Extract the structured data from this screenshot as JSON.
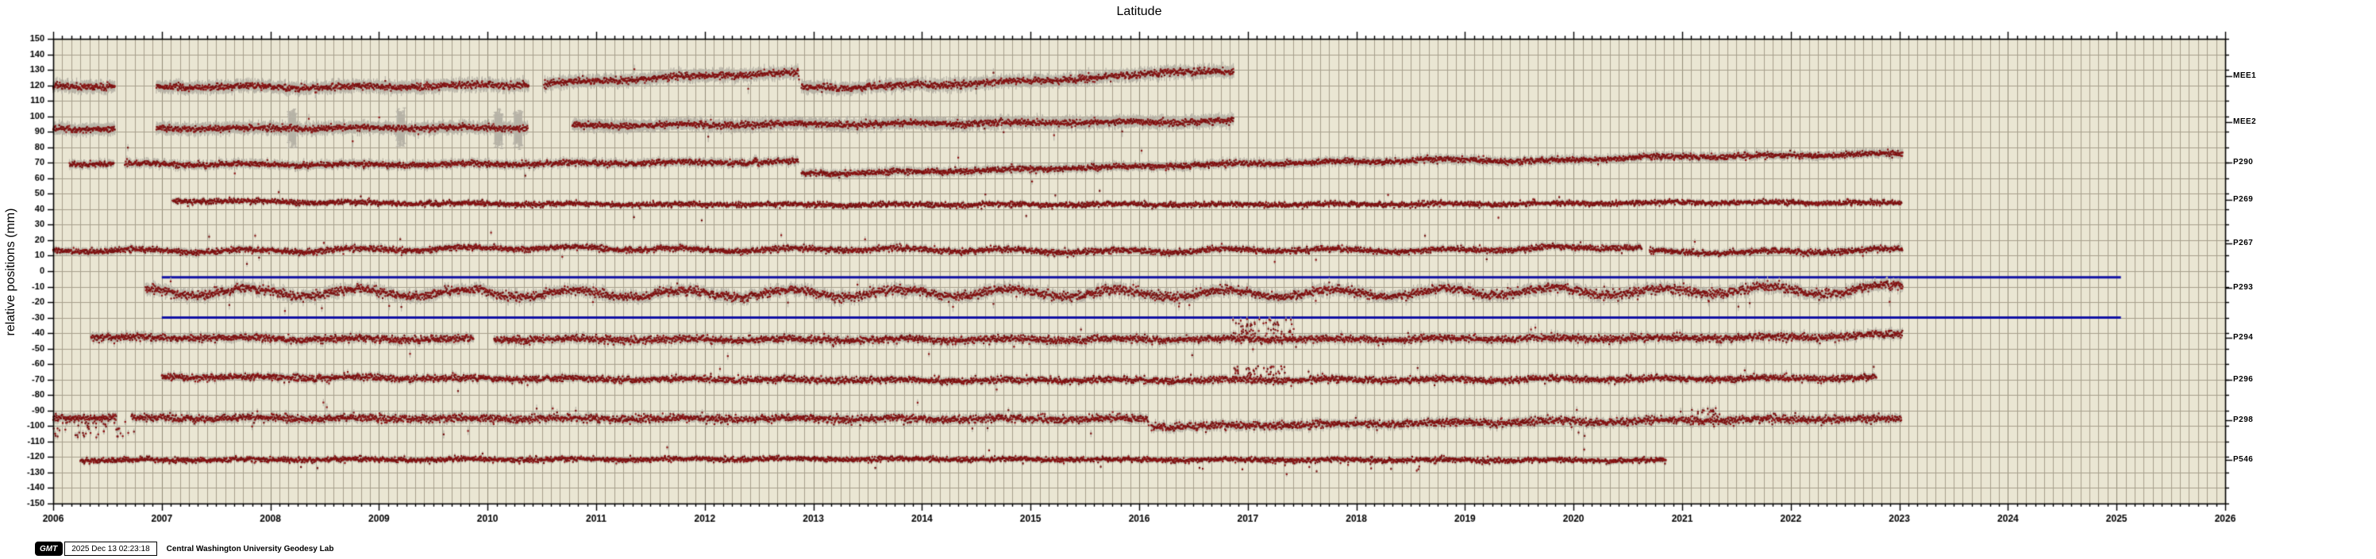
{
  "page": {
    "title": "Latitude"
  },
  "stamp": {
    "logo": "GMT",
    "timestamp": "2025 Dec 13 02:23:18",
    "credit": "Central Washington University Geodesy Lab"
  },
  "colors": {
    "page_bg": "#ffffff",
    "plot_bg": "#eae6d3",
    "grid_minor": "#a69f8c",
    "grid_year": "#938c78",
    "frame": "#000000",
    "point": "#8b1414",
    "point_dark": "#751010",
    "error_bar": "#b7b3a7",
    "reference_line": "#1111a5",
    "text": "#000000"
  },
  "chart_data": {
    "type": "scatter",
    "title": "Latitude",
    "ylabel": "relative positions (mm)",
    "xlim": [
      2006,
      2026
    ],
    "ylim": [
      -150,
      150
    ],
    "y_tick_step": 10,
    "x_tick_step_years": 1,
    "x_minor_grid": "monthly",
    "grid": true,
    "legend_position": "right-margin-station-labels",
    "reference_lines": [
      {
        "y_mm": -4,
        "start": 2007.0,
        "end": 2025.04
      },
      {
        "y_mm": -30,
        "start": 2007.0,
        "end": 2025.04
      }
    ],
    "stations": [
      {
        "id": "MEE1",
        "label_mm": 126,
        "err_mm": 3.2,
        "sigma_mm": 1.1,
        "annual_amp_mm": 0.6,
        "outlier_p": 0.0015,
        "segments": [
          [
            2006.0,
            2006.57
          ],
          [
            2006.95,
            2010.38
          ],
          [
            2010.52,
            2012.87
          ],
          [
            2012.89,
            2016.87
          ]
        ],
        "trend": [
          [
            2006.0,
            119.5
          ],
          [
            2008.5,
            118.6
          ],
          [
            2009.6,
            119.6
          ],
          [
            2010.45,
            120.8
          ],
          [
            2012.3,
            127.2
          ],
          [
            2012.86,
            127.6
          ],
          [
            2012.88,
            118.4
          ],
          [
            2013.6,
            119.2
          ],
          [
            2014.8,
            122.0
          ],
          [
            2015.9,
            126.0
          ],
          [
            2016.25,
            129.3
          ],
          [
            2016.6,
            128.6
          ],
          [
            2016.87,
            127.8
          ]
        ],
        "err_spike_years": [],
        "outlier_clusters": []
      },
      {
        "id": "MEE2",
        "label_mm": 96,
        "err_mm": 3.2,
        "sigma_mm": 1.0,
        "annual_amp_mm": 0.5,
        "outlier_p": 0.002,
        "segments": [
          [
            2006.0,
            2006.57
          ],
          [
            2006.95,
            2010.37
          ],
          [
            2010.78,
            2016.87
          ]
        ],
        "trend": [
          [
            2006.0,
            92.0
          ],
          [
            2008.0,
            92.2
          ],
          [
            2010.37,
            92.8
          ],
          [
            2010.78,
            94.0
          ],
          [
            2013.5,
            95.2
          ],
          [
            2016.87,
            96.6
          ]
        ],
        "err_spike_years": [
          2008.2,
          2009.2,
          2010.1,
          2010.28
        ],
        "outlier_clusters": []
      },
      {
        "id": "P290",
        "label_mm": 70,
        "err_mm": 2.2,
        "sigma_mm": 0.9,
        "annual_amp_mm": 0.5,
        "outlier_p": 0.0025,
        "segments": [
          [
            2006.15,
            2006.56
          ],
          [
            2006.66,
            2012.86
          ],
          [
            2012.89,
            2023.03
          ]
        ],
        "trend": [
          [
            2006.15,
            69.4
          ],
          [
            2008.8,
            68.6
          ],
          [
            2011.6,
            70.0
          ],
          [
            2012.86,
            70.6
          ],
          [
            2012.88,
            62.8
          ],
          [
            2014.4,
            64.8
          ],
          [
            2016.2,
            68.0
          ],
          [
            2017.6,
            70.2
          ],
          [
            2018.9,
            72.0
          ],
          [
            2019.7,
            71.0
          ],
          [
            2020.6,
            73.6
          ],
          [
            2021.9,
            74.6
          ],
          [
            2023.03,
            75.6
          ]
        ],
        "err_spike_years": [],
        "outlier_clusters": []
      },
      {
        "id": "P269",
        "label_mm": 46,
        "err_mm": 1.4,
        "sigma_mm": 0.8,
        "annual_amp_mm": 0.4,
        "outlier_p": 0.0025,
        "segments": [
          [
            2007.1,
            2023.02
          ]
        ],
        "trend": [
          [
            2007.1,
            45.6
          ],
          [
            2009.0,
            44.0
          ],
          [
            2011.0,
            43.2
          ],
          [
            2014.0,
            42.9
          ],
          [
            2017.0,
            43.1
          ],
          [
            2019.5,
            43.4
          ],
          [
            2021.0,
            44.4
          ],
          [
            2023.02,
            44.0
          ]
        ],
        "err_spike_years": [],
        "outlier_clusters": []
      },
      {
        "id": "P267",
        "label_mm": 18,
        "err_mm": 1.8,
        "sigma_mm": 0.9,
        "annual_amp_mm": 0.9,
        "outlier_p": 0.004,
        "segments": [
          [
            2006.0,
            2020.63
          ],
          [
            2020.7,
            2023.03
          ]
        ],
        "trend": [
          [
            2006.0,
            13.4
          ],
          [
            2008.1,
            13.1
          ],
          [
            2010.4,
            15.2
          ],
          [
            2012.2,
            13.6
          ],
          [
            2013.4,
            14.4
          ],
          [
            2015.5,
            12.6
          ],
          [
            2017.4,
            13.9
          ],
          [
            2018.6,
            13.2
          ],
          [
            2020.4,
            15.7
          ],
          [
            2020.62,
            15.2
          ],
          [
            2020.7,
            12.1
          ],
          [
            2021.8,
            12.4
          ],
          [
            2023.03,
            13.7
          ]
        ],
        "err_spike_years": [],
        "outlier_clusters": []
      },
      {
        "id": "P293",
        "label_mm": -11,
        "err_mm": 2.8,
        "sigma_mm": 1.4,
        "annual_amp_mm": 2.3,
        "outlier_p": 0.005,
        "segments": [
          [
            2006.85,
            2023.03
          ]
        ],
        "trend": [
          [
            2006.85,
            -13.2
          ],
          [
            2009.0,
            -14.0
          ],
          [
            2012.0,
            -14.6
          ],
          [
            2014.5,
            -13.8
          ],
          [
            2016.5,
            -14.6
          ],
          [
            2018.5,
            -14.0
          ],
          [
            2019.8,
            -12.6
          ],
          [
            2020.6,
            -13.6
          ],
          [
            2021.6,
            -11.8
          ],
          [
            2022.4,
            -13.0
          ],
          [
            2023.03,
            -10.4
          ]
        ],
        "err_spike_years": [],
        "outlier_clusters": []
      },
      {
        "id": "P294",
        "label_mm": -43,
        "err_mm": 2.2,
        "sigma_mm": 1.1,
        "annual_amp_mm": 0.6,
        "outlier_p": 0.004,
        "segments": [
          [
            2006.35,
            2009.87
          ],
          [
            2010.06,
            2023.03
          ]
        ],
        "trend": [
          [
            2006.35,
            -42.4
          ],
          [
            2008.2,
            -43.6
          ],
          [
            2010.06,
            -44.0
          ],
          [
            2013.0,
            -44.2
          ],
          [
            2016.0,
            -44.0
          ],
          [
            2018.0,
            -43.8
          ],
          [
            2020.0,
            -43.4
          ],
          [
            2022.2,
            -42.6
          ],
          [
            2023.03,
            -40.6
          ]
        ],
        "err_spike_years": [],
        "outlier_clusters": [
          {
            "t_range": [
              2016.85,
              2017.45
            ],
            "count": 60,
            "dy_range": [
              2.5,
              13
            ]
          }
        ]
      },
      {
        "id": "P296",
        "label_mm": -70,
        "err_mm": 1.8,
        "sigma_mm": 1.0,
        "annual_amp_mm": 0.5,
        "outlier_p": 0.0025,
        "segments": [
          [
            2007.0,
            2022.79
          ]
        ],
        "trend": [
          [
            2007.0,
            -68.2
          ],
          [
            2010.0,
            -69.3
          ],
          [
            2013.5,
            -70.4
          ],
          [
            2016.0,
            -70.4
          ],
          [
            2019.0,
            -70.0
          ],
          [
            2021.5,
            -69.4
          ],
          [
            2022.79,
            -69.0
          ]
        ],
        "err_spike_years": [],
        "outlier_clusters": [
          {
            "t_range": [
              2016.85,
              2017.35
            ],
            "count": 40,
            "dy_range": [
              2.5,
              9
            ]
          }
        ]
      },
      {
        "id": "P298",
        "label_mm": -96,
        "err_mm": 2.2,
        "sigma_mm": 1.2,
        "annual_amp_mm": 0.5,
        "outlier_p": 0.004,
        "segments": [
          [
            2006.0,
            2006.58
          ],
          [
            2006.72,
            2016.09
          ],
          [
            2016.11,
            2023.02
          ]
        ],
        "trend": [
          [
            2006.0,
            -94.6
          ],
          [
            2010.0,
            -95.2
          ],
          [
            2016.07,
            -95.4
          ],
          [
            2016.11,
            -100.6
          ],
          [
            2018.0,
            -98.6
          ],
          [
            2020.0,
            -97.0
          ],
          [
            2022.0,
            -95.8
          ],
          [
            2023.02,
            -95.4
          ]
        ],
        "err_spike_years": [],
        "outlier_clusters": [
          {
            "t_range": [
              2006.0,
              2006.75
            ],
            "count": 50,
            "dy_range": [
              -13,
              -2
            ]
          },
          {
            "t_range": [
              2021.05,
              2021.35
            ],
            "count": 22,
            "dy_range": [
              2.5,
              8
            ]
          }
        ]
      },
      {
        "id": "P546",
        "label_mm": -122,
        "err_mm": 1.4,
        "sigma_mm": 0.8,
        "annual_amp_mm": 0.4,
        "outlier_p": 0.0025,
        "segments": [
          [
            2006.25,
            2020.85
          ]
        ],
        "trend": [
          [
            2006.25,
            -122.0
          ],
          [
            2010.0,
            -121.6
          ],
          [
            2013.0,
            -121.2
          ],
          [
            2016.5,
            -121.8
          ],
          [
            2019.0,
            -122.0
          ],
          [
            2020.85,
            -122.2
          ]
        ],
        "err_spike_years": [],
        "outlier_clusters": [
          {
            "t_range": [
              2016.3,
              2018.6
            ],
            "count": 14,
            "dy_range": [
              -7,
              -2
            ]
          }
        ]
      }
    ]
  }
}
